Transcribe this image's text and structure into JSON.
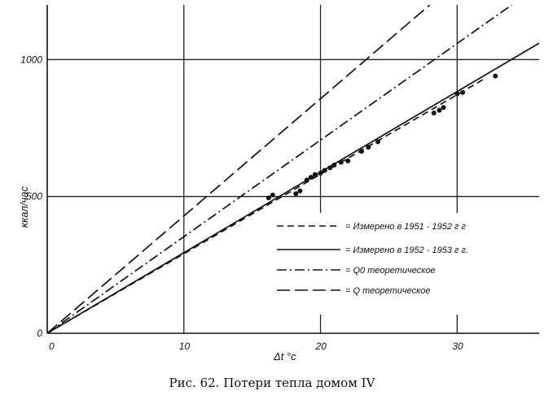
{
  "caption": "Рис. 62. Потери тепла домом IV",
  "chart_data": {
    "type": "line",
    "title": "",
    "xlabel": "Δt °с",
    "ylabel": "ккал/час",
    "xlim": [
      0,
      36
    ],
    "ylim": [
      0,
      1200
    ],
    "x_ticks": [
      "0",
      "10",
      "20",
      "30"
    ],
    "y_ticks": [
      "0",
      "500",
      "1000"
    ],
    "grid": true,
    "legend_position": "center-right",
    "series": [
      {
        "name": "= Измерено в 1951 - 1952 г г",
        "style": "dashed",
        "x": [
          0,
          32
        ],
        "y": [
          0,
          930
        ]
      },
      {
        "name": "= Измерено в 1952 - 1953 г г.",
        "style": "solid",
        "x": [
          0,
          36
        ],
        "y": [
          0,
          1060
        ]
      },
      {
        "name": "= Q0 теоретическое",
        "style": "dashdot",
        "x": [
          0,
          34
        ],
        "y": [
          0,
          1200
        ]
      },
      {
        "name": "= Q теоретическое",
        "style": "longdash",
        "x": [
          0,
          28
        ],
        "y": [
          0,
          1200
        ]
      }
    ],
    "points": {
      "x": [
        16.2,
        16.5,
        18.2,
        18.5,
        19.0,
        19.3,
        19.6,
        20.0,
        20.3,
        20.7,
        21.0,
        21.5,
        22.0,
        23.0,
        23.5,
        24.2,
        28.3,
        28.7,
        29.0,
        30.0,
        30.4,
        32.8
      ],
      "y": [
        495,
        505,
        510,
        520,
        560,
        570,
        580,
        585,
        595,
        605,
        615,
        625,
        630,
        665,
        680,
        700,
        805,
        815,
        825,
        875,
        880,
        940
      ]
    }
  }
}
